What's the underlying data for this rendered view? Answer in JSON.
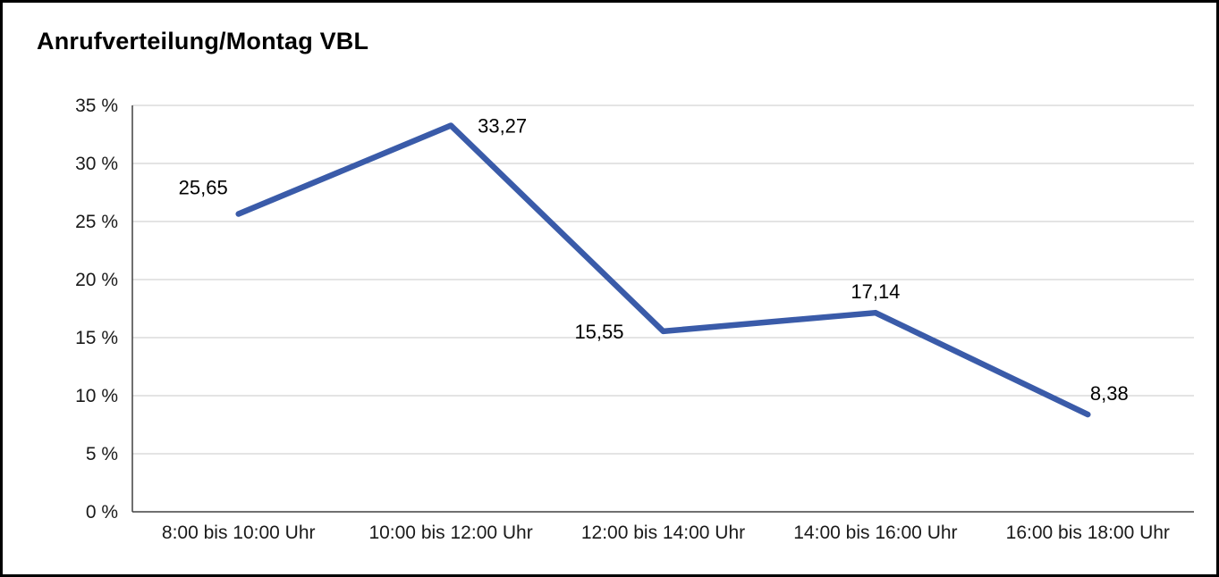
{
  "title": "Anrufverteilung/Montag VBL",
  "chart_data": {
    "type": "line",
    "title": "Anrufverteilung/Montag VBL",
    "categories": [
      "8:00 bis 10:00 Uhr",
      "10:00 bis 12:00 Uhr",
      "12:00 bis 14:00 Uhr",
      "14:00 bis 16:00 Uhr",
      "16:00 bis 18:00 Uhr"
    ],
    "values": [
      25.65,
      33.27,
      15.55,
      17.14,
      8.38
    ],
    "data_labels": [
      "25,65",
      "33,27",
      "15,55",
      "17,14",
      "8,38"
    ],
    "label_positions": [
      "above-left",
      "right",
      "left",
      "above",
      "above-right"
    ],
    "xlabel": "",
    "ylabel": "",
    "ylim": [
      0,
      35
    ],
    "ytick_step": 5,
    "ytick_labels": [
      "0 %",
      "5 %",
      "10 %",
      "15 %",
      "20 %",
      "25 %",
      "30 %",
      "35 %"
    ],
    "grid": true,
    "legend": "none",
    "line_color": "#3a5ba9",
    "grid_color": "#c8c8c8",
    "axis_color": "#404040",
    "text_color": "#1a1a1a"
  }
}
